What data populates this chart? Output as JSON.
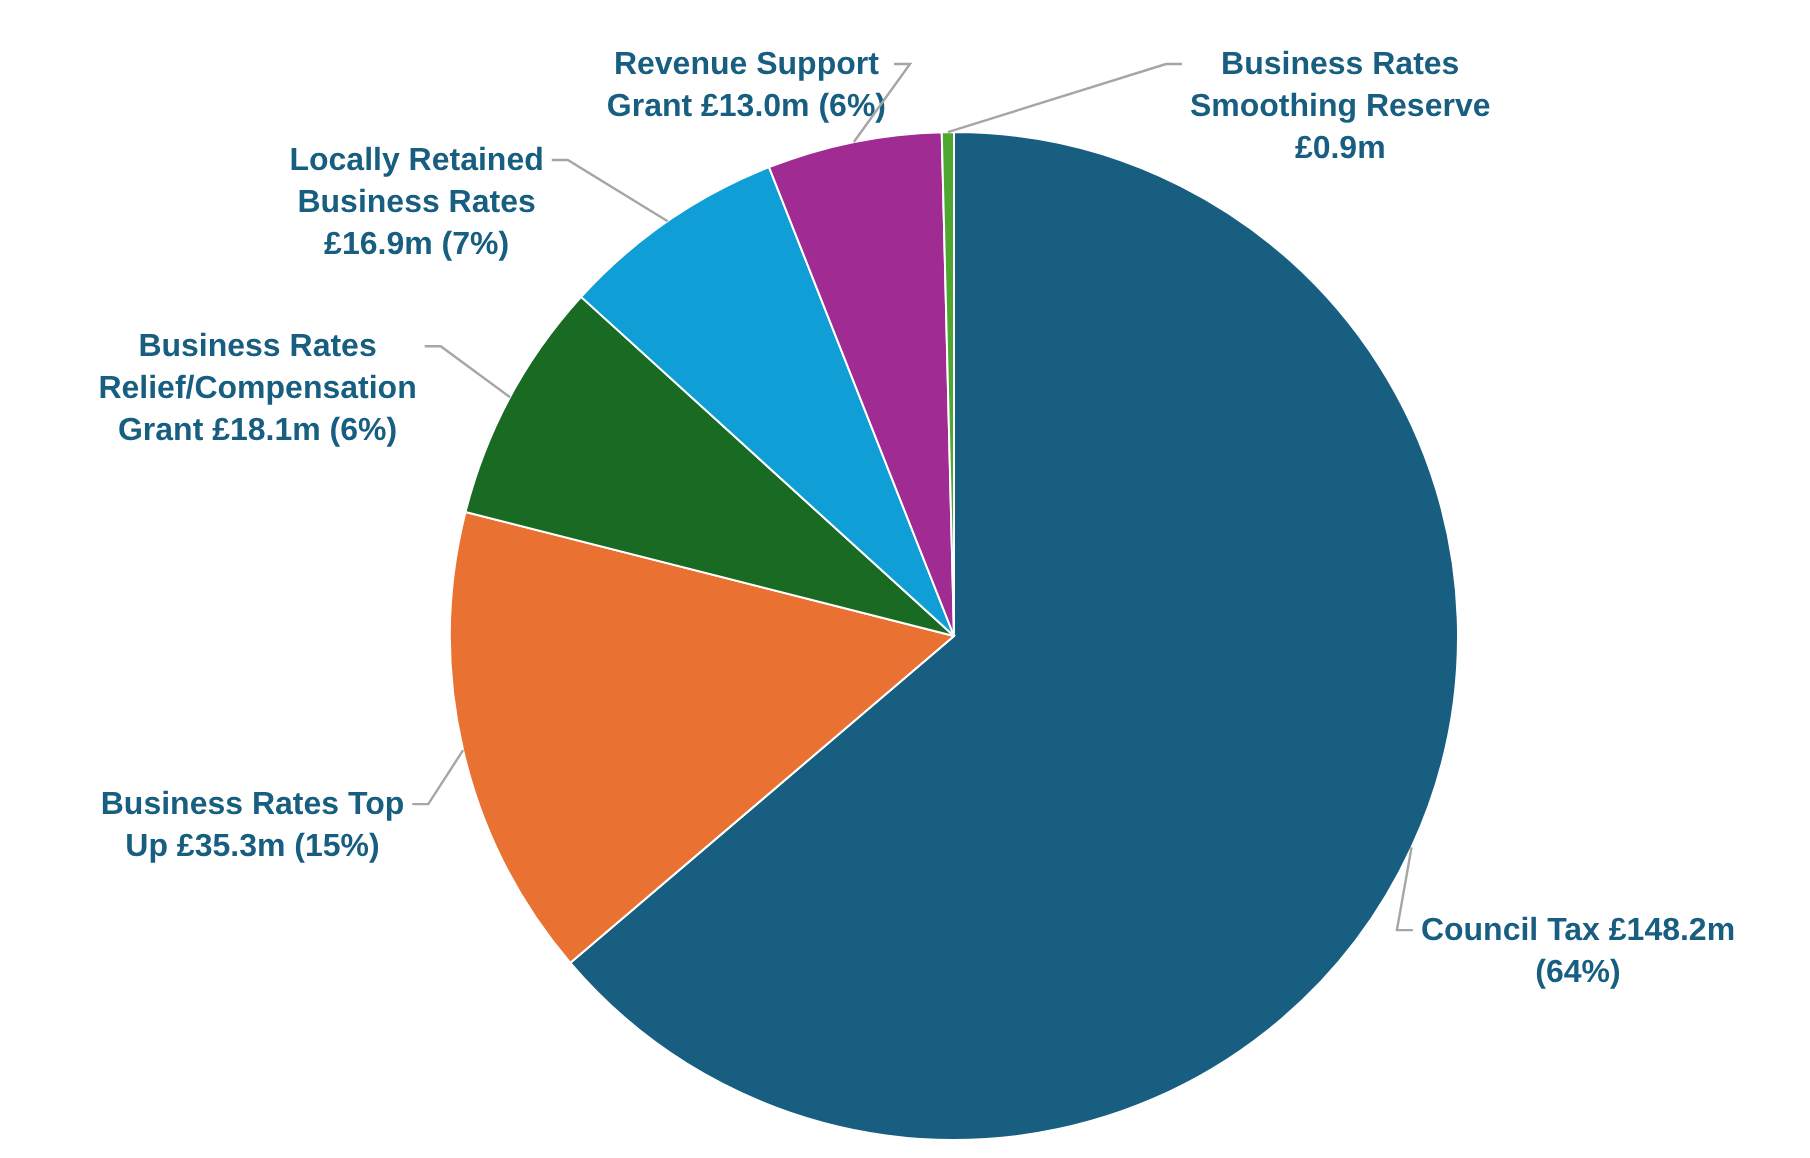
{
  "chart_data": {
    "type": "pie",
    "categories": [
      "Council Tax",
      "Business Rates Top Up",
      "Business Rates Relief/Compensation Grant",
      "Locally Retained Business Rates",
      "Revenue Support Grant",
      "Business Rates Smoothing Reserve"
    ],
    "values": [
      148.2,
      35.3,
      18.1,
      16.9,
      13.0,
      0.9
    ],
    "colors": [
      "#175e80",
      "#e97132",
      "#196b24",
      "#0f9ed5",
      "#a02b93",
      "#4ea72e"
    ],
    "value_labels": [
      "£148.2m",
      "£35.3m",
      "£18.1m",
      "£16.9m",
      "£13.0m",
      "£0.9m"
    ],
    "annotations": [
      "(64%)",
      "(15%)",
      "(6%)",
      "(7%)",
      "(6%)"
    ]
  }
}
